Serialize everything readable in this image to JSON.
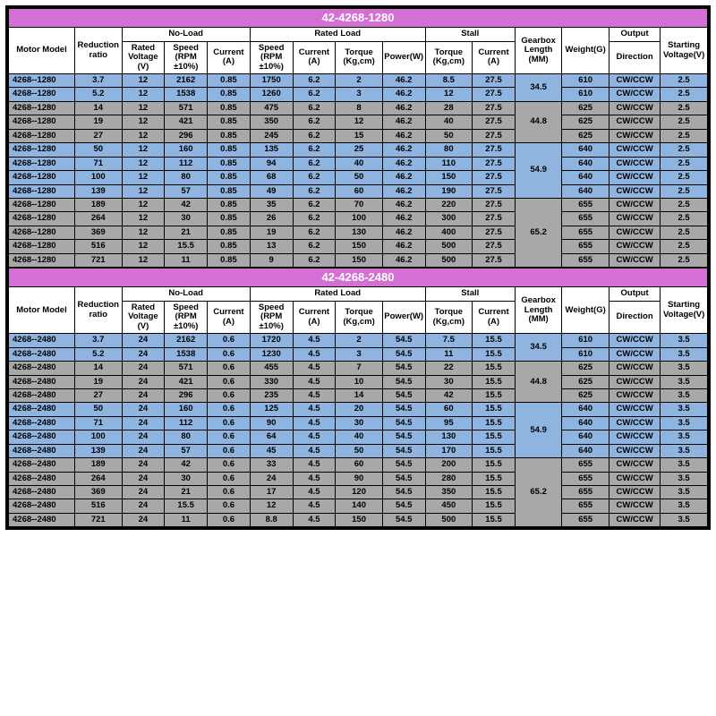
{
  "tables": [
    {
      "title": "42-4268-1280",
      "columns": {
        "motor_model": "Motor Model",
        "reduction_ratio": "Reduction ratio",
        "noload": "No-Load",
        "rated_voltage": "Rated Voltage (V)",
        "speed_rpm": "Speed (RPM ±10%)",
        "current_a": "Current (A)",
        "rated_load": "Rated Load",
        "torque_kgcm": "Torque (Kg,cm)",
        "power_w": "Power(W)",
        "stall": "Stall",
        "gearbox_len": "Gearbox Length (MM)",
        "weight_g": "Weight(G)",
        "output": "Output",
        "direction": "Direction",
        "starting_voltage": "Starting Voltage(V)"
      },
      "groups": [
        {
          "color": "blue",
          "gearbox": "34.5",
          "rows": [
            [
              "4268--1280",
              "3.7",
              "12",
              "2162",
              "0.85",
              "1750",
              "6.2",
              "2",
              "46.2",
              "8.5",
              "27.5",
              "610",
              "CW/CCW",
              "2.5"
            ],
            [
              "4268--1280",
              "5.2",
              "12",
              "1538",
              "0.85",
              "1260",
              "6.2",
              "3",
              "46.2",
              "12",
              "27.5",
              "610",
              "CW/CCW",
              "2.5"
            ]
          ]
        },
        {
          "color": "gray",
          "gearbox": "44.8",
          "rows": [
            [
              "4268--1280",
              "14",
              "12",
              "571",
              "0.85",
              "475",
              "6.2",
              "8",
              "46.2",
              "28",
              "27.5",
              "625",
              "CW/CCW",
              "2.5"
            ],
            [
              "4268--1280",
              "19",
              "12",
              "421",
              "0.85",
              "350",
              "6.2",
              "12",
              "46.2",
              "40",
              "27.5",
              "625",
              "CW/CCW",
              "2.5"
            ],
            [
              "4268--1280",
              "27",
              "12",
              "296",
              "0.85",
              "245",
              "6.2",
              "15",
              "46.2",
              "50",
              "27.5",
              "625",
              "CW/CCW",
              "2.5"
            ]
          ]
        },
        {
          "color": "blue",
          "gearbox": "54.9",
          "rows": [
            [
              "4268--1280",
              "50",
              "12",
              "160",
              "0.85",
              "135",
              "6.2",
              "25",
              "46.2",
              "80",
              "27.5",
              "640",
              "CW/CCW",
              "2.5"
            ],
            [
              "4268--1280",
              "71",
              "12",
              "112",
              "0.85",
              "94",
              "6.2",
              "40",
              "46.2",
              "110",
              "27.5",
              "640",
              "CW/CCW",
              "2.5"
            ],
            [
              "4268--1280",
              "100",
              "12",
              "80",
              "0.85",
              "68",
              "6.2",
              "50",
              "46.2",
              "150",
              "27.5",
              "640",
              "CW/CCW",
              "2.5"
            ],
            [
              "4268--1280",
              "139",
              "12",
              "57",
              "0.85",
              "49",
              "6.2",
              "60",
              "46.2",
              "190",
              "27.5",
              "640",
              "CW/CCW",
              "2.5"
            ]
          ]
        },
        {
          "color": "gray",
          "gearbox": "65.2",
          "rows": [
            [
              "4268--1280",
              "189",
              "12",
              "42",
              "0.85",
              "35",
              "6.2",
              "70",
              "46.2",
              "220",
              "27.5",
              "655",
              "CW/CCW",
              "2.5"
            ],
            [
              "4268--1280",
              "264",
              "12",
              "30",
              "0.85",
              "26",
              "6.2",
              "100",
              "46.2",
              "300",
              "27.5",
              "655",
              "CW/CCW",
              "2.5"
            ],
            [
              "4268--1280",
              "369",
              "12",
              "21",
              "0.85",
              "19",
              "6.2",
              "130",
              "46.2",
              "400",
              "27.5",
              "655",
              "CW/CCW",
              "2.5"
            ],
            [
              "4268--1280",
              "516",
              "12",
              "15.5",
              "0.85",
              "13",
              "6.2",
              "150",
              "46.2",
              "500",
              "27.5",
              "655",
              "CW/CCW",
              "2.5"
            ],
            [
              "4268--1280",
              "721",
              "12",
              "11",
              "0.85",
              "9",
              "6.2",
              "150",
              "46.2",
              "500",
              "27.5",
              "655",
              "CW/CCW",
              "2.5"
            ]
          ]
        }
      ]
    },
    {
      "title": "42-4268-2480",
      "columns": {
        "motor_model": "Motor Model",
        "reduction_ratio": "Reduction ratio",
        "noload": "No-Load",
        "rated_voltage": "Rated Voltage (V)",
        "speed_rpm": "Speed (RPM ±10%)",
        "current_a": "Current (A)",
        "rated_load": "Rated Load",
        "torque_kgcm": "Torque (Kg,cm)",
        "power_w": "Power(W)",
        "stall": "Stall",
        "gearbox_len": "Gearbox Length (MM)",
        "weight_g": "Weight(G)",
        "output": "Output",
        "direction": "Direction",
        "starting_voltage": "Starting Voltage(V)"
      },
      "groups": [
        {
          "color": "blue",
          "gearbox": "34.5",
          "rows": [
            [
              "4268--2480",
              "3.7",
              "24",
              "2162",
              "0.6",
              "1720",
              "4.5",
              "2",
              "54.5",
              "7.5",
              "15.5",
              "610",
              "CW/CCW",
              "3.5"
            ],
            [
              "4268--2480",
              "5.2",
              "24",
              "1538",
              "0.6",
              "1230",
              "4.5",
              "3",
              "54.5",
              "11",
              "15.5",
              "610",
              "CW/CCW",
              "3.5"
            ]
          ]
        },
        {
          "color": "gray",
          "gearbox": "44.8",
          "rows": [
            [
              "4268--2480",
              "14",
              "24",
              "571",
              "0.6",
              "455",
              "4.5",
              "7",
              "54.5",
              "22",
              "15.5",
              "625",
              "CW/CCW",
              "3.5"
            ],
            [
              "4268--2480",
              "19",
              "24",
              "421",
              "0.6",
              "330",
              "4.5",
              "10",
              "54.5",
              "30",
              "15.5",
              "625",
              "CW/CCW",
              "3.5"
            ],
            [
              "4268--2480",
              "27",
              "24",
              "296",
              "0.6",
              "235",
              "4.5",
              "14",
              "54.5",
              "42",
              "15.5",
              "625",
              "CW/CCW",
              "3.5"
            ]
          ]
        },
        {
          "color": "blue",
          "gearbox": "54.9",
          "rows": [
            [
              "4268--2480",
              "50",
              "24",
              "160",
              "0.6",
              "125",
              "4.5",
              "20",
              "54.5",
              "60",
              "15.5",
              "640",
              "CW/CCW",
              "3.5"
            ],
            [
              "4268--2480",
              "71",
              "24",
              "112",
              "0.6",
              "90",
              "4.5",
              "30",
              "54.5",
              "95",
              "15.5",
              "640",
              "CW/CCW",
              "3.5"
            ],
            [
              "4268--2480",
              "100",
              "24",
              "80",
              "0.6",
              "64",
              "4.5",
              "40",
              "54.5",
              "130",
              "15.5",
              "640",
              "CW/CCW",
              "3.5"
            ],
            [
              "4268--2480",
              "139",
              "24",
              "57",
              "0.6",
              "45",
              "4.5",
              "50",
              "54.5",
              "170",
              "15.5",
              "640",
              "CW/CCW",
              "3.5"
            ]
          ]
        },
        {
          "color": "gray",
          "gearbox": "65.2",
          "rows": [
            [
              "4268--2480",
              "189",
              "24",
              "42",
              "0.6",
              "33",
              "4.5",
              "60",
              "54.5",
              "200",
              "15.5",
              "655",
              "CW/CCW",
              "3.5"
            ],
            [
              "4268--2480",
              "264",
              "24",
              "30",
              "0.6",
              "24",
              "4.5",
              "90",
              "54.5",
              "280",
              "15.5",
              "655",
              "CW/CCW",
              "3.5"
            ],
            [
              "4268--2480",
              "369",
              "24",
              "21",
              "0.6",
              "17",
              "4.5",
              "120",
              "54.5",
              "350",
              "15.5",
              "655",
              "CW/CCW",
              "3.5"
            ],
            [
              "4268--2480",
              "516",
              "24",
              "15.5",
              "0.6",
              "12",
              "4.5",
              "140",
              "54.5",
              "450",
              "15.5",
              "655",
              "CW/CCW",
              "3.5"
            ],
            [
              "4268--2480",
              "721",
              "24",
              "11",
              "0.6",
              "8.8",
              "4.5",
              "150",
              "54.5",
              "500",
              "15.5",
              "655",
              "CW/CCW",
              "3.5"
            ]
          ]
        }
      ]
    }
  ]
}
